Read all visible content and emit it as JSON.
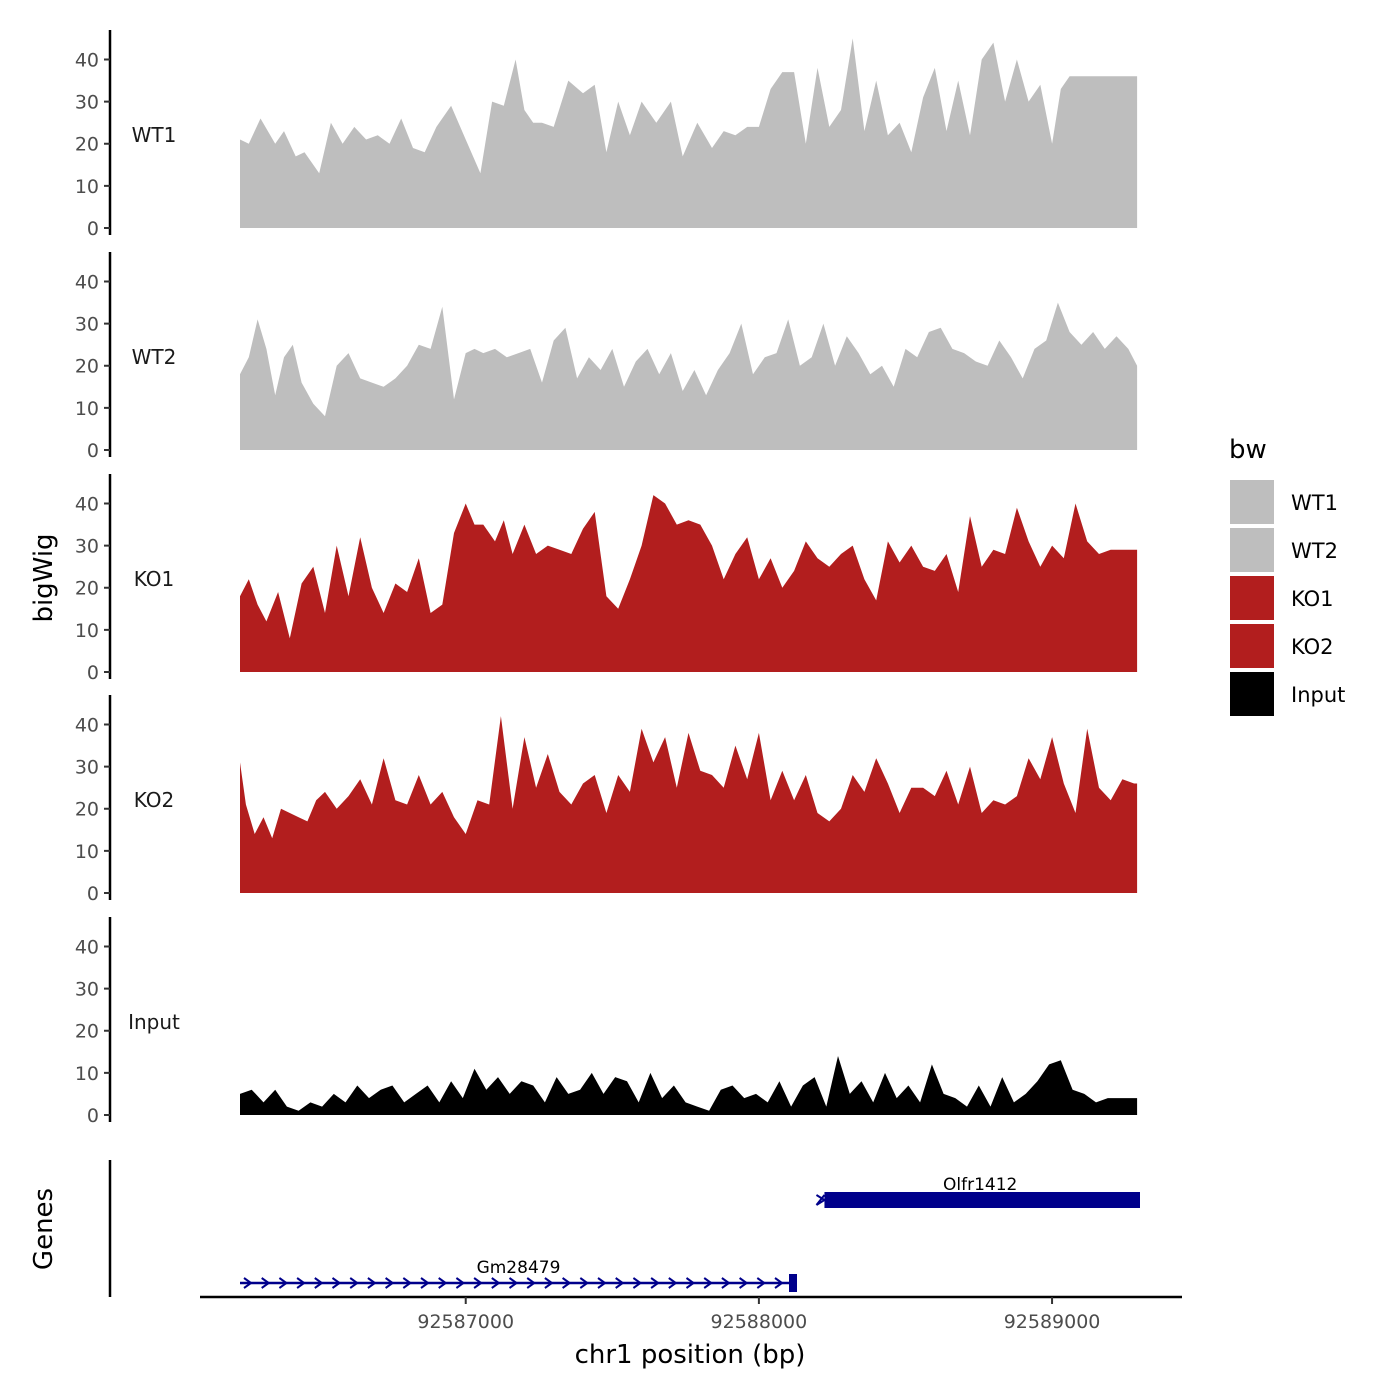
{
  "chart_data": {
    "type": "area",
    "description_note": "bigWig coverage tracks with gene annotation track",
    "ylabel": "bigWig",
    "xlabel": "chr1 position (bp)",
    "genes_track_label": "Genes",
    "x_range": [
      92586230,
      92589300
    ],
    "x_ticks": [
      92587000,
      92588000,
      92589000
    ],
    "x_tick_labels": [
      "92587000",
      "92588000",
      "92589000"
    ],
    "y_ticks": [
      0,
      10,
      20,
      30,
      40
    ],
    "y_tick_labels": [
      "0",
      "10",
      "20",
      "30",
      "40"
    ],
    "ylim": [
      0,
      47
    ],
    "legend": {
      "title": "bw",
      "position": "right",
      "items": [
        {
          "label": "WT1",
          "color": "#bebebe"
        },
        {
          "label": "WT2",
          "color": "#bebebe"
        },
        {
          "label": "KO1",
          "color": "#b21e1e"
        },
        {
          "label": "KO2",
          "color": "#b21e1e"
        },
        {
          "label": "Input",
          "color": "#000000"
        }
      ]
    },
    "series": [
      {
        "name": "WT1",
        "color": "#bebebe",
        "x": [
          92586230,
          92586260,
          92586300,
          92586350,
          92586380,
          92586420,
          92586450,
          92586500,
          92586540,
          92586580,
          92586620,
          92586660,
          92586700,
          92586740,
          92586780,
          92586820,
          92586860,
          92586900,
          92586950,
          92587000,
          92587050,
          92587090,
          92587130,
          92587170,
          92587200,
          92587230,
          92587260,
          92587300,
          92587350,
          92587400,
          92587440,
          92587480,
          92587520,
          92587560,
          92587600,
          92587650,
          92587700,
          92587740,
          92587790,
          92587840,
          92587880,
          92587920,
          92587960,
          92588000,
          92588040,
          92588080,
          92588120,
          92588160,
          92588200,
          92588240,
          92588280,
          92588320,
          92588360,
          92588400,
          92588440,
          92588480,
          92588520,
          92588560,
          92588600,
          92588640,
          92588680,
          92588720,
          92588760,
          92588800,
          92588840,
          92588880,
          92588920,
          92588960,
          92589000,
          92589030,
          92589060,
          92589100,
          92589130,
          92589160,
          92589200,
          92589240,
          92589280,
          92589290
        ],
        "values": [
          21,
          20,
          26,
          20,
          23,
          17,
          18,
          13,
          25,
          20,
          24,
          21,
          22,
          20,
          26,
          19,
          18,
          24,
          29,
          21,
          13,
          30,
          29,
          40,
          28,
          25,
          25,
          24,
          35,
          32,
          34,
          18,
          30,
          22,
          30,
          25,
          30,
          17,
          25,
          19,
          23,
          22,
          24,
          24,
          33,
          37,
          37,
          20,
          38,
          24,
          28,
          45,
          23,
          35,
          22,
          25,
          18,
          31,
          38,
          23,
          35,
          22,
          40,
          44,
          30,
          40,
          30,
          34,
          20,
          33,
          36,
          36,
          36,
          36,
          36,
          36,
          36,
          36
        ]
      },
      {
        "name": "WT2",
        "color": "#bebebe",
        "x": [
          92586230,
          92586260,
          92586290,
          92586320,
          92586350,
          92586380,
          92586410,
          92586440,
          92586480,
          92586520,
          92586560,
          92586600,
          92586640,
          92586680,
          92586720,
          92586760,
          92586800,
          92586840,
          92586880,
          92586920,
          92586960,
          92587000,
          92587030,
          92587060,
          92587100,
          92587140,
          92587180,
          92587220,
          92587260,
          92587300,
          92587340,
          92587380,
          92587420,
          92587460,
          92587500,
          92587540,
          92587580,
          92587620,
          92587660,
          92587700,
          92587740,
          92587780,
          92587820,
          92587860,
          92587900,
          92587940,
          92587980,
          92588020,
          92588060,
          92588100,
          92588140,
          92588180,
          92588220,
          92588260,
          92588300,
          92588340,
          92588380,
          92588420,
          92588460,
          92588500,
          92588540,
          92588580,
          92588620,
          92588660,
          92588700,
          92588740,
          92588780,
          92588820,
          92588860,
          92588900,
          92588940,
          92588980,
          92589020,
          92589060,
          92589100,
          92589140,
          92589180,
          92589220,
          92589260,
          92589290
        ],
        "values": [
          18,
          22,
          31,
          24,
          13,
          22,
          25,
          16,
          11,
          8,
          20,
          23,
          17,
          16,
          15,
          17,
          20,
          25,
          24,
          34,
          12,
          23,
          24,
          23,
          24,
          22,
          23,
          24,
          16,
          26,
          29,
          17,
          22,
          19,
          24,
          15,
          21,
          24,
          18,
          23,
          14,
          19,
          13,
          19,
          23,
          30,
          18,
          22,
          23,
          31,
          20,
          22,
          30,
          20,
          27,
          23,
          18,
          20,
          15,
          24,
          22,
          28,
          29,
          24,
          23,
          21,
          20,
          26,
          22,
          17,
          24,
          26,
          35,
          28,
          25,
          28,
          24,
          27,
          24,
          20
        ]
      },
      {
        "name": "KO1",
        "color": "#b21e1e",
        "x": [
          92586230,
          92586260,
          92586290,
          92586320,
          92586360,
          92586400,
          92586440,
          92586480,
          92586520,
          92586560,
          92586600,
          92586640,
          92586680,
          92586720,
          92586760,
          92586800,
          92586840,
          92586880,
          92586920,
          92586960,
          92587000,
          92587030,
          92587060,
          92587100,
          92587130,
          92587160,
          92587200,
          92587240,
          92587280,
          92587320,
          92587360,
          92587400,
          92587440,
          92587480,
          92587520,
          92587560,
          92587600,
          92587640,
          92587680,
          92587720,
          92587760,
          92587800,
          92587840,
          92587880,
          92587920,
          92587960,
          92588000,
          92588040,
          92588080,
          92588120,
          92588160,
          92588200,
          92588240,
          92588280,
          92588320,
          92588360,
          92588400,
          92588440,
          92588480,
          92588520,
          92588560,
          92588600,
          92588640,
          92588680,
          92588720,
          92588760,
          92588800,
          92588840,
          92588880,
          92588920,
          92588960,
          92589000,
          92589040,
          92589080,
          92589120,
          92589160,
          92589200,
          92589240,
          92589280,
          92589290
        ],
        "values": [
          18,
          22,
          16,
          12,
          19,
          8,
          21,
          25,
          14,
          30,
          18,
          32,
          20,
          14,
          21,
          19,
          27,
          14,
          16,
          33,
          40,
          35,
          35,
          31,
          36,
          28,
          35,
          28,
          30,
          29,
          28,
          34,
          38,
          18,
          15,
          22,
          30,
          42,
          40,
          35,
          36,
          35,
          30,
          22,
          28,
          32,
          22,
          27,
          20,
          24,
          31,
          27,
          25,
          28,
          30,
          22,
          17,
          31,
          26,
          30,
          25,
          24,
          28,
          19,
          37,
          25,
          29,
          28,
          39,
          31,
          25,
          30,
          27,
          40,
          31,
          28,
          29,
          29,
          29,
          29
        ]
      },
      {
        "name": "KO2",
        "color": "#b21e1e",
        "x": [
          92586230,
          92586250,
          92586280,
          92586310,
          92586340,
          92586370,
          92586400,
          92586430,
          92586460,
          92586490,
          92586520,
          92586560,
          92586600,
          92586640,
          92586680,
          92586720,
          92586760,
          92586800,
          92586840,
          92586880,
          92586920,
          92586960,
          92587000,
          92587040,
          92587080,
          92587120,
          92587160,
          92587200,
          92587240,
          92587280,
          92587320,
          92587360,
          92587400,
          92587440,
          92587480,
          92587520,
          92587560,
          92587600,
          92587640,
          92587680,
          92587720,
          92587760,
          92587800,
          92587840,
          92587880,
          92587920,
          92587960,
          92588000,
          92588040,
          92588080,
          92588120,
          92588160,
          92588200,
          92588240,
          92588280,
          92588320,
          92588360,
          92588400,
          92588440,
          92588480,
          92588520,
          92588560,
          92588600,
          92588640,
          92588680,
          92588720,
          92588760,
          92588800,
          92588840,
          92588880,
          92588920,
          92588960,
          92589000,
          92589040,
          92589080,
          92589120,
          92589160,
          92589200,
          92589240,
          92589280,
          92589290
        ],
        "values": [
          31,
          21,
          14,
          18,
          13,
          20,
          19,
          18,
          17,
          22,
          24,
          20,
          23,
          27,
          21,
          32,
          22,
          21,
          28,
          21,
          24,
          18,
          14,
          22,
          21,
          42,
          20,
          37,
          25,
          33,
          24,
          21,
          26,
          28,
          19,
          28,
          24,
          39,
          31,
          37,
          25,
          38,
          29,
          28,
          25,
          35,
          27,
          38,
          22,
          29,
          22,
          28,
          19,
          17,
          20,
          28,
          24,
          32,
          26,
          19,
          25,
          25,
          23,
          29,
          21,
          30,
          19,
          22,
          21,
          23,
          32,
          27,
          37,
          26,
          19,
          39,
          25,
          22,
          27,
          26,
          26
        ]
      },
      {
        "name": "Input",
        "color": "#000000",
        "x": [
          92586230,
          92586270,
          92586310,
          92586350,
          92586390,
          92586430,
          92586470,
          92586510,
          92586550,
          92586590,
          92586630,
          92586670,
          92586710,
          92586750,
          92586790,
          92586830,
          92586870,
          92586910,
          92586950,
          92586990,
          92587030,
          92587070,
          92587110,
          92587150,
          92587190,
          92587230,
          92587270,
          92587310,
          92587350,
          92587390,
          92587430,
          92587470,
          92587510,
          92587550,
          92587590,
          92587630,
          92587670,
          92587710,
          92587750,
          92587790,
          92587830,
          92587870,
          92587910,
          92587950,
          92587990,
          92588030,
          92588070,
          92588110,
          92588150,
          92588190,
          92588230,
          92588270,
          92588310,
          92588350,
          92588390,
          92588430,
          92588470,
          92588510,
          92588550,
          92588590,
          92588630,
          92588670,
          92588710,
          92588750,
          92588790,
          92588830,
          92588870,
          92588910,
          92588950,
          92588990,
          92589030,
          92589070,
          92589110,
          92589150,
          92589190,
          92589230,
          92589270,
          92589290
        ],
        "values": [
          5,
          6,
          3,
          6,
          2,
          1,
          3,
          2,
          5,
          3,
          7,
          4,
          6,
          7,
          3,
          5,
          7,
          3,
          8,
          4,
          11,
          6,
          9,
          5,
          8,
          7,
          3,
          9,
          5,
          6,
          10,
          5,
          9,
          8,
          3,
          10,
          4,
          7,
          3,
          2,
          1,
          6,
          7,
          4,
          5,
          3,
          8,
          2,
          7,
          9,
          2,
          14,
          5,
          8,
          3,
          10,
          4,
          7,
          3,
          12,
          5,
          4,
          2,
          7,
          2,
          9,
          3,
          5,
          8,
          12,
          13,
          6,
          5,
          3,
          4,
          4,
          4,
          4
        ]
      }
    ],
    "genes": [
      {
        "name": "Gm28479",
        "start": 92586230,
        "end": 92588130,
        "strand": "+",
        "color": "#00008b"
      },
      {
        "name": "Olfr1412",
        "start": 92588210,
        "end": 92589300,
        "strand": "-",
        "color": "#00008b"
      }
    ]
  }
}
